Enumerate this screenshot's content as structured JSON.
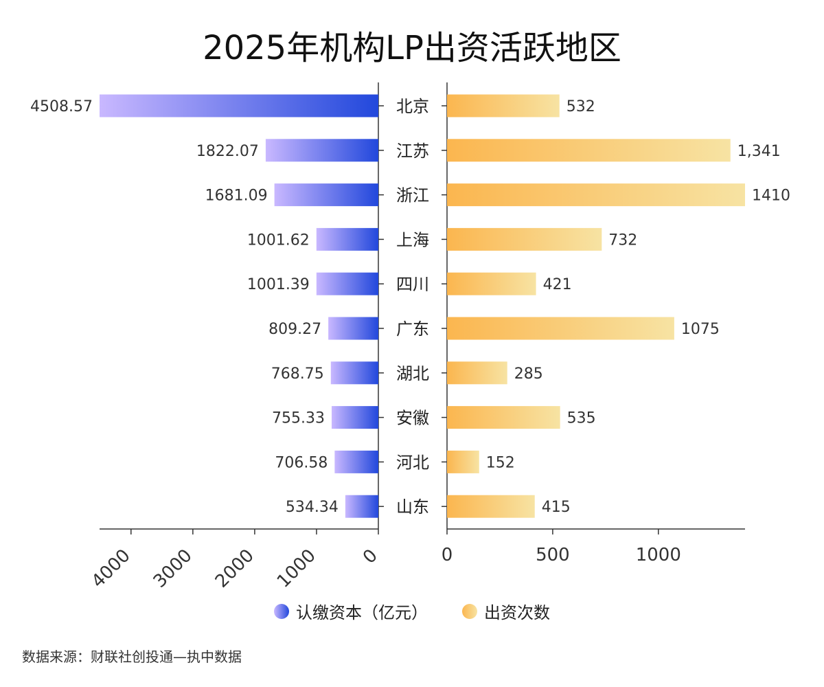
{
  "chart_data": {
    "type": "bar",
    "title": "2025年机构LP出资活跃地区",
    "categories": [
      "北京",
      "江苏",
      "浙江",
      "上海",
      "四川",
      "广东",
      "湖北",
      "安徽",
      "河北",
      "山东"
    ],
    "series": [
      {
        "name": "认缴资本（亿元）",
        "values": [
          4508.57,
          1822.07,
          1681.09,
          1001.62,
          1001.39,
          809.27,
          768.75,
          755.33,
          706.58,
          534.34
        ],
        "labels": [
          "4508.57",
          "1822.07",
          "1681.09",
          "1001.62",
          "1001.39",
          "809.27",
          "768.75",
          "755.33",
          "706.58",
          "534.34"
        ],
        "xlim": [
          0,
          4508.57
        ],
        "ticks": [
          0,
          1000,
          2000,
          3000,
          4000
        ],
        "direction": "left",
        "color_start": "#c9b8ff",
        "color_end": "#2248dc"
      },
      {
        "name": "出资次数",
        "values": [
          532,
          1341,
          1410,
          732,
          421,
          1075,
          285,
          535,
          152,
          415
        ],
        "labels": [
          "532",
          "1,341",
          "1410",
          "732",
          "421",
          "1075",
          "285",
          "535",
          "152",
          "415"
        ],
        "xlim": [
          0,
          1410
        ],
        "ticks": [
          0,
          500,
          1000
        ],
        "direction": "right",
        "color_start": "#fbb64f",
        "color_end": "#f7e3a3"
      }
    ],
    "legend_position": "bottom-center",
    "grid": false
  },
  "source": "数据来源：财联社创投通—执中数据"
}
